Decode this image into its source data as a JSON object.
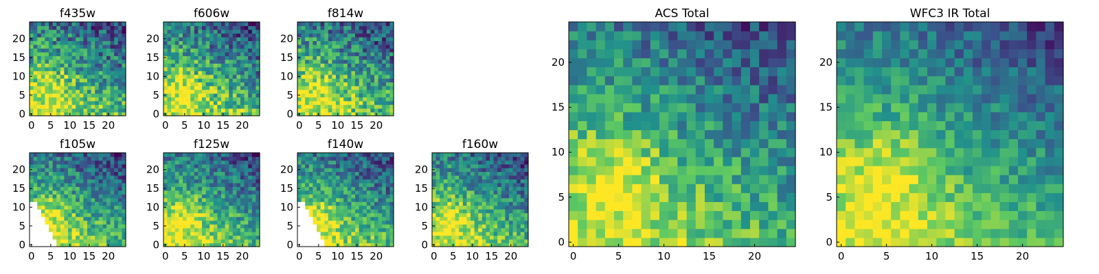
{
  "figure": {
    "colormap": "viridis",
    "colormap_stops": [
      "#440154",
      "#3b528b",
      "#21918c",
      "#5ec962",
      "#fde725"
    ]
  },
  "chart_data": [
    {
      "type": "heatmap",
      "title": "f435w",
      "xlim": [
        0,
        25
      ],
      "ylim": [
        0,
        25
      ],
      "xticks": [
        0,
        5,
        10,
        15,
        20
      ],
      "yticks": [
        0,
        5,
        10,
        15,
        20
      ],
      "seed": 435,
      "noise": 0.55,
      "mask": null
    },
    {
      "type": "heatmap",
      "title": "f606w",
      "xlim": [
        0,
        25
      ],
      "ylim": [
        0,
        25
      ],
      "xticks": [
        0,
        5,
        10,
        15,
        20
      ],
      "yticks": [
        0,
        5,
        10,
        15,
        20
      ],
      "seed": 606,
      "noise": 0.55,
      "mask": null
    },
    {
      "type": "heatmap",
      "title": "f814w",
      "xlim": [
        0,
        25
      ],
      "ylim": [
        0,
        25
      ],
      "xticks": [
        0,
        5,
        10,
        15,
        20
      ],
      "yticks": [
        0,
        5,
        10,
        15,
        20
      ],
      "seed": 814,
      "noise": 0.55,
      "mask": null
    },
    {
      "type": "heatmap",
      "title": "f105w",
      "xlim": [
        0,
        25
      ],
      "ylim": [
        0,
        25
      ],
      "xticks": [
        0,
        5,
        10,
        15,
        20
      ],
      "yticks": [
        0,
        5,
        10,
        15,
        20
      ],
      "seed": 105,
      "noise": 0.45,
      "mask": "lower-left-wedge"
    },
    {
      "type": "heatmap",
      "title": "f125w",
      "xlim": [
        0,
        25
      ],
      "ylim": [
        0,
        25
      ],
      "xticks": [
        0,
        5,
        10,
        15,
        20
      ],
      "yticks": [
        0,
        5,
        10,
        15,
        20
      ],
      "seed": 125,
      "noise": 0.45,
      "mask": null
    },
    {
      "type": "heatmap",
      "title": "f140w",
      "xlim": [
        0,
        25
      ],
      "ylim": [
        0,
        25
      ],
      "xticks": [
        0,
        5,
        10,
        15,
        20
      ],
      "yticks": [
        0,
        5,
        10,
        15,
        20
      ],
      "seed": 140,
      "noise": 0.45,
      "mask": "lower-left-wedge"
    },
    {
      "type": "heatmap",
      "title": "f160w",
      "xlim": [
        0,
        25
      ],
      "ylim": [
        0,
        25
      ],
      "xticks": [
        0,
        5,
        10,
        15,
        20
      ],
      "yticks": [
        0,
        5,
        10,
        15,
        20
      ],
      "seed": 160,
      "noise": 0.45,
      "mask": null
    },
    {
      "type": "heatmap",
      "title": "ACS Total",
      "xlim": [
        0,
        25
      ],
      "ylim": [
        0,
        25
      ],
      "xticks": [
        0,
        5,
        10,
        15,
        20
      ],
      "yticks": [
        0,
        5,
        10,
        15,
        20
      ],
      "seed": 901,
      "noise": 0.4,
      "mask": null
    },
    {
      "type": "heatmap",
      "title": "WFC3 IR Total",
      "xlim": [
        0,
        25
      ],
      "ylim": [
        0,
        25
      ],
      "xticks": [
        0,
        5,
        10,
        15,
        20
      ],
      "yticks": [
        0,
        5,
        10,
        15,
        20
      ],
      "seed": 902,
      "noise": 0.32,
      "mask": null
    }
  ]
}
